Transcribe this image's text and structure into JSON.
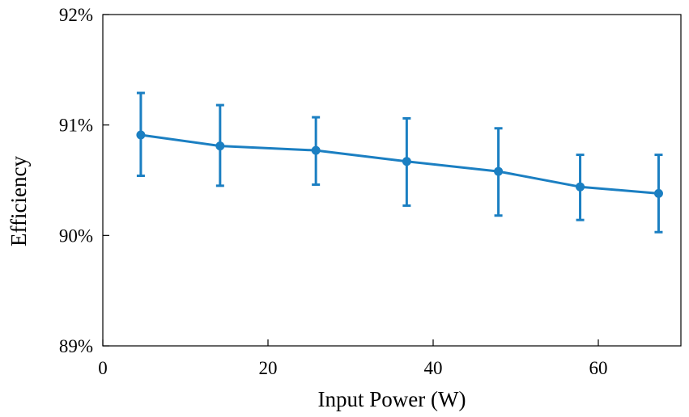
{
  "colors": {
    "series": "#1b7fc2",
    "axis": "#000000",
    "background": "#ffffff"
  },
  "chart_data": {
    "type": "line",
    "title": "",
    "xlabel": "Input Power (W)",
    "ylabel": "Efficiency",
    "xlim": [
      0,
      70
    ],
    "ylim": [
      89,
      92
    ],
    "xticks": [
      0,
      20,
      40,
      60
    ],
    "xtick_labels": [
      "0",
      "20",
      "40",
      "60"
    ],
    "yticks": [
      89,
      90,
      91,
      92
    ],
    "ytick_labels": [
      "89%",
      "90%",
      "91%",
      "92%"
    ],
    "grid": false,
    "legend": "none",
    "series": [
      {
        "name": "Efficiency",
        "x": [
          4.6,
          14.2,
          25.8,
          36.8,
          47.9,
          57.8,
          67.3
        ],
        "y": [
          90.91,
          90.81,
          90.77,
          90.67,
          90.58,
          90.44,
          90.38
        ],
        "error_low": [
          90.54,
          90.45,
          90.46,
          90.27,
          90.18,
          90.14,
          90.03
        ],
        "error_high": [
          91.29,
          91.18,
          91.07,
          91.06,
          90.97,
          90.73,
          90.73
        ],
        "marker": "circle"
      }
    ]
  }
}
